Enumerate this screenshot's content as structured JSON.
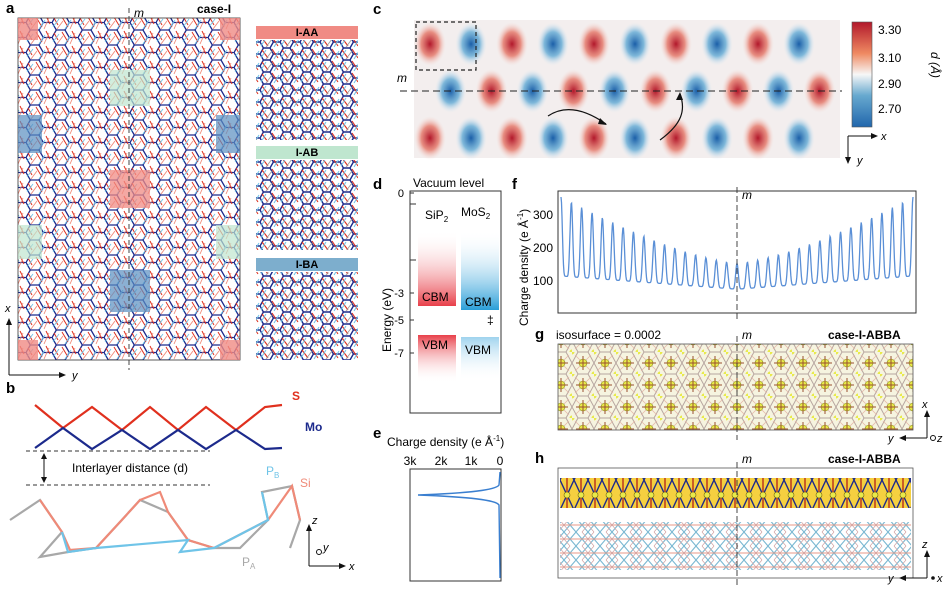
{
  "panels": {
    "a": {
      "letter": "a",
      "mirror": "m",
      "case": "case-I",
      "axis_x": "x",
      "axis_y": "y"
    },
    "stack_boxes": [
      {
        "label": "I-AA",
        "color": "#f08b84"
      },
      {
        "label": "I-AB",
        "color": "#bfe6cf"
      },
      {
        "label": "I-BA",
        "color": "#7daecd"
      }
    ],
    "b": {
      "letter": "b",
      "s": "S",
      "mo": "Mo",
      "interlayer": "Interlayer distance (d)",
      "pb": "P",
      "pb_sub": "B",
      "si": "Si",
      "pa": "P",
      "pa_sub": "A",
      "axis_z": "z",
      "axis_y": "y",
      "axis_x": "x"
    },
    "c": {
      "letter": "c",
      "mirror": "m",
      "axis_x": "x",
      "axis_y": "y",
      "colorbar_label": "d (Å)",
      "ticks": [
        "3.30",
        "3.10",
        "2.90",
        "2.70"
      ]
    },
    "d": {
      "letter": "d",
      "vacuum": "Vacuum level",
      "zero": "0",
      "ylabel": "Energy (eV)",
      "ticks": [
        "-3",
        "-5",
        "-7"
      ],
      "sip2": "SiP",
      "sip2_sub": "2",
      "mos2": "MoS",
      "mos2_sub": "2",
      "cbm": "CBM",
      "vbm": "VBM",
      "dagger": "‡"
    },
    "e": {
      "letter": "e",
      "title": "Charge density (e Å",
      "title_sup": "-1",
      "title_end": ")",
      "ticks": [
        "3k",
        "2k",
        "1k",
        "0"
      ]
    },
    "f": {
      "letter": "f",
      "mirror": "m",
      "ylabel": "Charge density (e Å",
      "ylabel_sup": "-1",
      "ylabel_end": ")",
      "ticks": [
        "300",
        "200",
        "100"
      ]
    },
    "g": {
      "letter": "g",
      "iso": "isosurface = 0.0002",
      "mirror": "m",
      "case": "case-I-ABBA",
      "axis_x": "x",
      "axis_y": "y",
      "axis_z": "z"
    },
    "h": {
      "letter": "h",
      "mirror": "m",
      "case": "case-I-ABBA",
      "axis_z": "z",
      "axis_y": "y",
      "axis_x": "x"
    }
  },
  "colors": {
    "red": "#e0301e",
    "navy": "#1c2a8c",
    "lightblue": "#6fc4e8",
    "grey": "#a0a0a0",
    "salmon": "#ef8a78",
    "line_blue": "#5a8fd6"
  }
}
